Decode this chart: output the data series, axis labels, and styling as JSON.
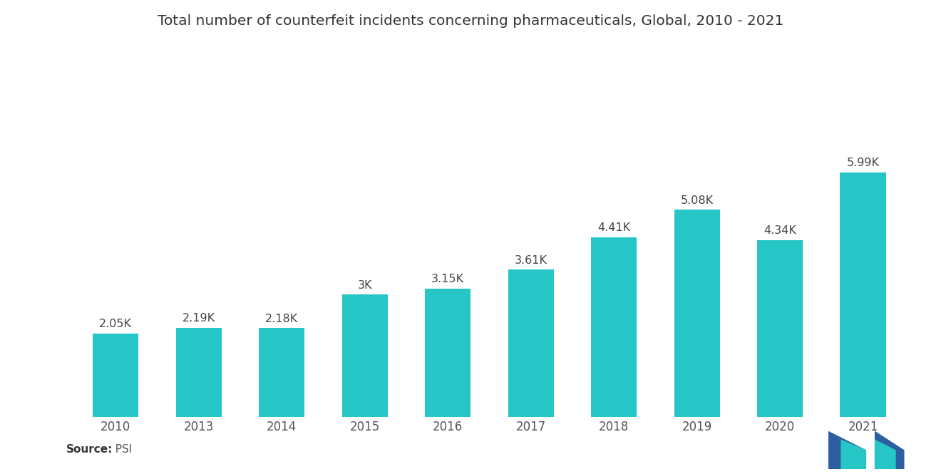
{
  "title": "Total number of counterfeit incidents concerning pharmaceuticals, Global, 2010 - 2021",
  "categories": [
    "2010",
    "2013",
    "2014",
    "2015",
    "2016",
    "2017",
    "2018",
    "2019",
    "2020",
    "2021"
  ],
  "values": [
    2050,
    2190,
    2180,
    3000,
    3150,
    3610,
    4410,
    5080,
    4340,
    5990
  ],
  "labels": [
    "2.05K",
    "2.19K",
    "2.18K",
    "3K",
    "3.15K",
    "3.61K",
    "4.41K",
    "5.08K",
    "4.34K",
    "5.99K"
  ],
  "bar_color": "#26c6c6",
  "background_color": "#ffffff",
  "title_fontsize": 14.5,
  "label_fontsize": 11.5,
  "tick_fontsize": 12,
  "source_bold": "Source:",
  "source_normal": "  PSI",
  "ylim": [
    0,
    7200
  ],
  "logo_color_blue": "#2d5fa0",
  "logo_color_teal": "#26c6c6"
}
